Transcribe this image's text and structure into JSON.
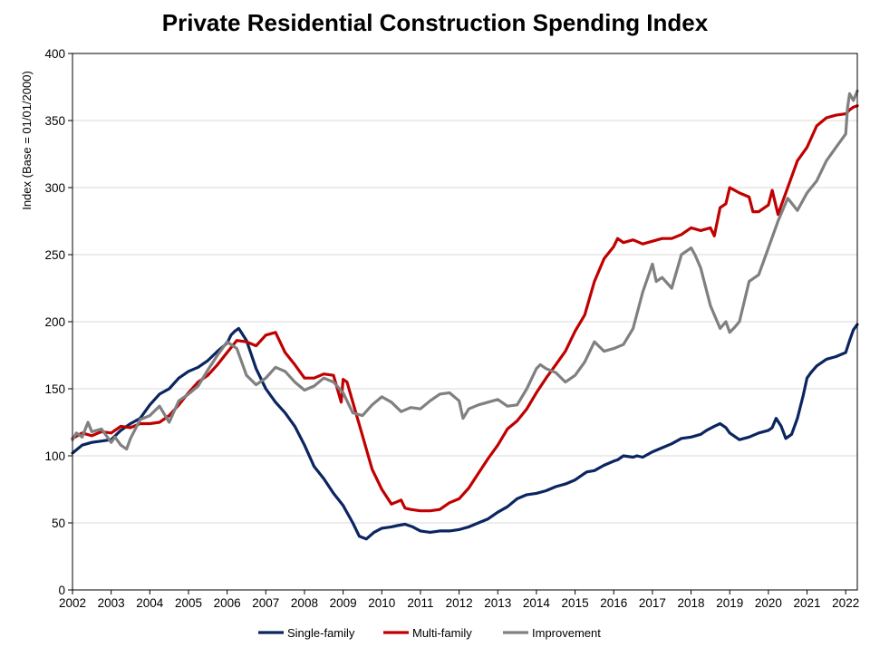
{
  "chart_data": {
    "type": "line",
    "title": "Private Residential Construction Spending Index",
    "xlabel": "",
    "ylabel": "Index  (Base = 01/01/2000)",
    "xlim": [
      2002.0,
      2022.3
    ],
    "ylim": [
      0,
      400
    ],
    "yticks": [
      0,
      50,
      100,
      150,
      200,
      250,
      300,
      350,
      400
    ],
    "xticks": [
      2002,
      2003,
      2004,
      2005,
      2006,
      2007,
      2008,
      2009,
      2010,
      2011,
      2012,
      2013,
      2014,
      2015,
      2016,
      2017,
      2018,
      2019,
      2020,
      2021,
      2022
    ],
    "grid": "horizontal",
    "legend": "bottom",
    "series": [
      {
        "name": "Single-family",
        "color": "#0B2560",
        "x": [
          2002.0,
          2002.25,
          2002.5,
          2002.75,
          2003.0,
          2003.25,
          2003.5,
          2003.75,
          2004.0,
          2004.25,
          2004.5,
          2004.75,
          2005.0,
          2005.25,
          2005.5,
          2005.75,
          2006.0,
          2006.1,
          2006.2,
          2006.3,
          2006.5,
          2006.75,
          2007.0,
          2007.25,
          2007.5,
          2007.75,
          2008.0,
          2008.25,
          2008.5,
          2008.75,
          2009.0,
          2009.25,
          2009.42,
          2009.6,
          2009.8,
          2010.0,
          2010.25,
          2010.4,
          2010.6,
          2010.8,
          2011.0,
          2011.25,
          2011.5,
          2011.75,
          2012.0,
          2012.25,
          2012.5,
          2012.75,
          2013.0,
          2013.25,
          2013.5,
          2013.75,
          2014.0,
          2014.25,
          2014.5,
          2014.75,
          2015.0,
          2015.2,
          2015.3,
          2015.5,
          2015.75,
          2016.0,
          2016.1,
          2016.25,
          2016.5,
          2016.6,
          2016.75,
          2017.0,
          2017.25,
          2017.5,
          2017.75,
          2018.0,
          2018.25,
          2018.4,
          2018.6,
          2018.75,
          2018.9,
          2019.0,
          2019.25,
          2019.5,
          2019.75,
          2020.0,
          2020.1,
          2020.2,
          2020.33,
          2020.45,
          2020.6,
          2020.75,
          2020.9,
          2021.0,
          2021.1,
          2021.25,
          2021.5,
          2021.75,
          2022.0,
          2022.1,
          2022.2,
          2022.3
        ],
        "values": [
          102,
          108,
          110,
          111,
          112,
          119,
          124,
          128,
          138,
          146,
          150,
          158,
          163,
          166,
          171,
          178,
          184,
          190,
          193,
          195,
          186,
          165,
          150,
          140,
          132,
          122,
          108,
          92,
          83,
          72,
          63,
          50,
          40,
          38,
          43,
          46,
          47,
          48,
          49,
          47,
          44,
          43,
          44,
          44,
          45,
          47,
          50,
          53,
          58,
          62,
          68,
          71,
          72,
          74,
          77,
          79,
          82,
          86,
          88,
          89,
          93,
          96,
          97,
          100,
          99,
          100,
          99,
          103,
          106,
          109,
          113,
          114,
          116,
          119,
          122,
          124,
          121,
          117,
          112,
          114,
          117,
          119,
          121,
          128,
          122,
          113,
          116,
          128,
          145,
          158,
          162,
          167,
          172,
          174,
          177,
          186,
          194,
          198
        ]
      },
      {
        "name": "Multi-family",
        "color": "#C00000",
        "x": [
          2002.0,
          2002.25,
          2002.5,
          2002.75,
          2003.0,
          2003.25,
          2003.5,
          2003.75,
          2004.0,
          2004.25,
          2004.5,
          2004.75,
          2005.0,
          2005.25,
          2005.5,
          2005.75,
          2006.0,
          2006.25,
          2006.5,
          2006.75,
          2007.0,
          2007.25,
          2007.5,
          2007.75,
          2008.0,
          2008.25,
          2008.5,
          2008.75,
          2008.95,
          2009.0,
          2009.1,
          2009.25,
          2009.5,
          2009.75,
          2010.0,
          2010.25,
          2010.5,
          2010.6,
          2010.75,
          2011.0,
          2011.25,
          2011.5,
          2011.75,
          2012.0,
          2012.25,
          2012.5,
          2012.75,
          2013.0,
          2013.25,
          2013.5,
          2013.75,
          2014.0,
          2014.25,
          2014.5,
          2014.75,
          2015.0,
          2015.25,
          2015.5,
          2015.75,
          2016.0,
          2016.1,
          2016.25,
          2016.5,
          2016.75,
          2017.0,
          2017.25,
          2017.5,
          2017.75,
          2018.0,
          2018.25,
          2018.5,
          2018.6,
          2018.75,
          2018.9,
          2019.0,
          2019.25,
          2019.5,
          2019.6,
          2019.75,
          2020.0,
          2020.1,
          2020.25,
          2020.5,
          2020.75,
          2021.0,
          2021.25,
          2021.5,
          2021.75,
          2022.0,
          2022.1,
          2022.2,
          2022.3
        ],
        "values": [
          113,
          117,
          115,
          118,
          117,
          122,
          121,
          124,
          124,
          125,
          130,
          138,
          147,
          155,
          160,
          168,
          177,
          186,
          185,
          182,
          190,
          192,
          177,
          168,
          158,
          158,
          161,
          160,
          140,
          157,
          155,
          140,
          115,
          90,
          75,
          64,
          67,
          61,
          60,
          59,
          59,
          60,
          65,
          68,
          76,
          87,
          98,
          108,
          120,
          126,
          135,
          147,
          158,
          168,
          178,
          193,
          205,
          230,
          247,
          256,
          262,
          259,
          261,
          258,
          260,
          262,
          262,
          265,
          270,
          268,
          270,
          264,
          285,
          288,
          300,
          296,
          293,
          282,
          282,
          287,
          298,
          280,
          300,
          320,
          330,
          346,
          352,
          354,
          355,
          358,
          360,
          361
        ]
      },
      {
        "name": "Improvement",
        "color": "#808080",
        "x": [
          2002.0,
          2002.1,
          2002.25,
          2002.4,
          2002.5,
          2002.75,
          2003.0,
          2003.1,
          2003.25,
          2003.4,
          2003.5,
          2003.75,
          2004.0,
          2004.25,
          2004.5,
          2004.75,
          2005.0,
          2005.25,
          2005.5,
          2005.75,
          2006.0,
          2006.25,
          2006.5,
          2006.75,
          2007.0,
          2007.25,
          2007.5,
          2007.75,
          2008.0,
          2008.25,
          2008.5,
          2008.75,
          2009.0,
          2009.25,
          2009.5,
          2009.75,
          2010.0,
          2010.25,
          2010.5,
          2010.75,
          2011.0,
          2011.25,
          2011.5,
          2011.75,
          2012.0,
          2012.1,
          2012.25,
          2012.5,
          2012.75,
          2013.0,
          2013.25,
          2013.5,
          2013.75,
          2014.0,
          2014.1,
          2014.25,
          2014.5,
          2014.75,
          2015.0,
          2015.25,
          2015.5,
          2015.75,
          2016.0,
          2016.25,
          2016.5,
          2016.75,
          2017.0,
          2017.1,
          2017.25,
          2017.5,
          2017.75,
          2018.0,
          2018.1,
          2018.25,
          2018.5,
          2018.75,
          2018.9,
          2019.0,
          2019.1,
          2019.25,
          2019.5,
          2019.75,
          2020.0,
          2020.25,
          2020.5,
          2020.75,
          2021.0,
          2021.25,
          2021.5,
          2021.75,
          2022.0,
          2022.05,
          2022.1,
          2022.2,
          2022.3
        ],
        "values": [
          112,
          117,
          114,
          125,
          118,
          120,
          110,
          114,
          108,
          105,
          113,
          127,
          130,
          137,
          125,
          141,
          146,
          152,
          164,
          175,
          185,
          180,
          160,
          153,
          158,
          166,
          163,
          155,
          149,
          152,
          158,
          155,
          147,
          132,
          130,
          138,
          144,
          140,
          133,
          136,
          135,
          141,
          146,
          147,
          141,
          128,
          135,
          138,
          140,
          142,
          137,
          138,
          150,
          165,
          168,
          165,
          162,
          155,
          160,
          170,
          185,
          178,
          180,
          183,
          195,
          222,
          243,
          230,
          233,
          225,
          250,
          255,
          250,
          240,
          212,
          195,
          200,
          192,
          195,
          200,
          230,
          235,
          255,
          275,
          292,
          283,
          296,
          305,
          320,
          330,
          340,
          360,
          370,
          365,
          372
        ]
      }
    ]
  }
}
